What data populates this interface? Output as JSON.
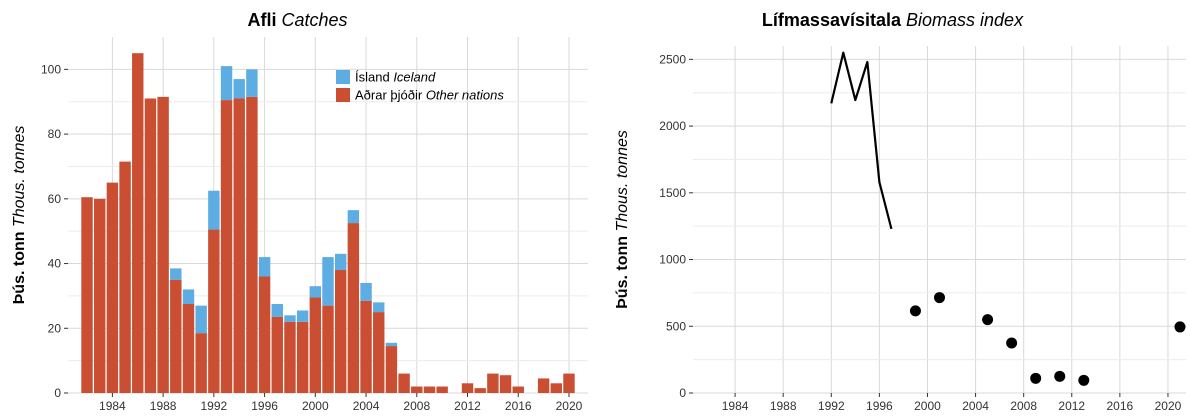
{
  "colors": {
    "iceland": "#5dade2",
    "other": "#c94e32",
    "grid": "#d9d9d9",
    "line": "#000000"
  },
  "chart_data": [
    {
      "type": "bar",
      "title_bold": "Afli",
      "title_italic": "Catches",
      "ylabel_bold": "Þús. tonn",
      "ylabel_italic": "Thous. tonnes",
      "xlim": [
        1980.5,
        2021.5
      ],
      "ylim": [
        0,
        110
      ],
      "xticks": [
        1984,
        1988,
        1992,
        1996,
        2000,
        2004,
        2008,
        2012,
        2016,
        2020
      ],
      "yticks": [
        0,
        20,
        40,
        60,
        80,
        100
      ],
      "legend_position": "top-right",
      "legend": [
        {
          "key": "iceland",
          "label": "Ísland",
          "label_italic": "Iceland"
        },
        {
          "key": "other",
          "label": "Aðrar þjóðir",
          "label_italic": "Other nations"
        }
      ],
      "categories": [
        1982,
        1983,
        1984,
        1985,
        1986,
        1987,
        1988,
        1989,
        1990,
        1991,
        1992,
        1993,
        1994,
        1995,
        1996,
        1997,
        1998,
        1999,
        2000,
        2001,
        2002,
        2003,
        2004,
        2005,
        2006,
        2007,
        2008,
        2009,
        2010,
        2011,
        2012,
        2013,
        2014,
        2015,
        2016,
        2017,
        2018,
        2019,
        2020
      ],
      "series": [
        {
          "name": "Aðrar þjóðir Other nations",
          "key": "other",
          "values": [
            60.5,
            60,
            65,
            71.5,
            105,
            91,
            91.5,
            35,
            27.5,
            18.5,
            50.5,
            90.5,
            91,
            91.5,
            36,
            23.5,
            22,
            22,
            29.5,
            27,
            38,
            52.5,
            28.5,
            25,
            14.5,
            6,
            2,
            2,
            2,
            0,
            3,
            1.5,
            6,
            5.5,
            2,
            0,
            4.5,
            3,
            6
          ]
        },
        {
          "name": "Ísland Iceland",
          "key": "iceland",
          "values": [
            0,
            0,
            0,
            0,
            0,
            0,
            0,
            3.5,
            4.5,
            8.5,
            12,
            10.5,
            6,
            8.5,
            6,
            4,
            2,
            3.5,
            3.5,
            15,
            5,
            4,
            5.5,
            3,
            1,
            0,
            0,
            0,
            0,
            0,
            0,
            0,
            0,
            0,
            0,
            0,
            0,
            0,
            0
          ]
        }
      ]
    },
    {
      "type": "line",
      "title_bold": "Lífmassavísitala",
      "title_italic": "Biomass index",
      "ylabel_bold": "Þús. tonn",
      "ylabel_italic": "Thous. tonnes",
      "xlim": [
        1980.5,
        2021.5
      ],
      "ylim": [
        0,
        2600
      ],
      "xticks": [
        1984,
        1988,
        1992,
        1996,
        2000,
        2004,
        2008,
        2012,
        2016,
        2020
      ],
      "yticks": [
        0,
        500,
        1000,
        1500,
        2000,
        2500
      ],
      "line": {
        "x": [
          1992,
          1993,
          1994,
          1995,
          1996,
          1997
        ],
        "y": [
          2170,
          2550,
          2195,
          2480,
          1580,
          1230
        ]
      },
      "points": {
        "x": [
          1999,
          2001,
          2005,
          2007,
          2009,
          2011,
          2013,
          2021
        ],
        "y": [
          615,
          715,
          550,
          375,
          110,
          125,
          95,
          495
        ]
      }
    }
  ]
}
